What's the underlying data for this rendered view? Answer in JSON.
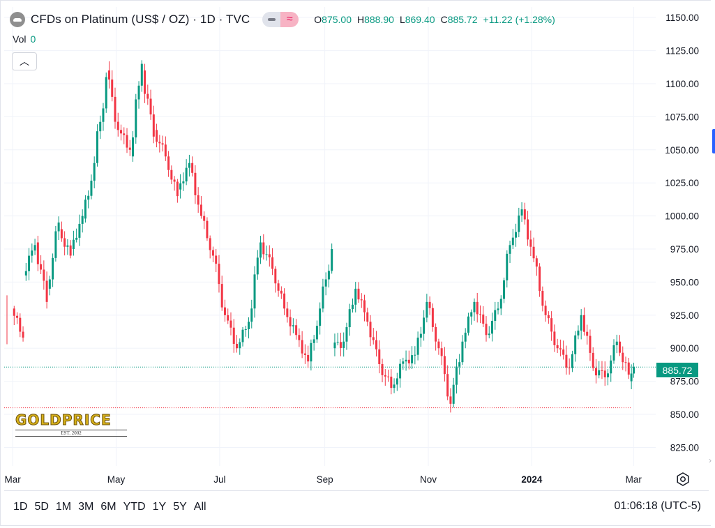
{
  "header": {
    "title": "CFDs on Platinum (US$ / OZ) · 1D · TVC",
    "ohlc": {
      "o_label": "O",
      "o": "875.00",
      "h_label": "H",
      "h": "888.90",
      "l_label": "L",
      "l": "869.40",
      "c_label": "C",
      "c": "885.72",
      "change": "+11.22 (+1.28%)"
    }
  },
  "volume": {
    "label": "Vol",
    "value": "0"
  },
  "last_price_label": "885.72",
  "watermark": {
    "brand": "GOLDPRICE",
    "est": "EST. 2002"
  },
  "range_buttons": [
    "1D",
    "5D",
    "1M",
    "3M",
    "6M",
    "YTD",
    "1Y",
    "5Y",
    "All"
  ],
  "clock": "01:06:18 (UTC-5)",
  "colors": {
    "up": "#089981",
    "down": "#f23645",
    "grid": "#f0f3fa"
  },
  "chart_data": {
    "type": "candlestick",
    "x_tick_labels": [
      "Mar",
      "May",
      "Jul",
      "Sep",
      "Nov",
      "2024",
      "Mar"
    ],
    "y_ticks": [
      825,
      850,
      875,
      900,
      925,
      950,
      975,
      1000,
      1025,
      1050,
      1075,
      1100,
      1125,
      1150
    ],
    "ylim": [
      811,
      1158
    ],
    "last_price": 885.72,
    "low_line": 855,
    "grid": true,
    "series": [
      {
        "date": "2023-03-01",
        "o": 930,
        "h": 940,
        "l": 905,
        "c": 908
      },
      {
        "date": "2023-03-08",
        "o": 955,
        "h": 985,
        "l": 950,
        "c": 978
      },
      {
        "date": "2023-03-15",
        "o": 980,
        "h": 985,
        "l": 930,
        "c": 935
      },
      {
        "date": "2023-03-22",
        "o": 945,
        "h": 1003,
        "l": 940,
        "c": 995
      },
      {
        "date": "2023-03-29",
        "o": 990,
        "h": 998,
        "l": 965,
        "c": 970
      },
      {
        "date": "2023-04-05",
        "o": 975,
        "h": 1005,
        "l": 970,
        "c": 1000
      },
      {
        "date": "2023-04-12",
        "o": 998,
        "h": 1045,
        "l": 995,
        "c": 1040
      },
      {
        "date": "2023-04-19",
        "o": 1040,
        "h": 1130,
        "l": 1035,
        "c": 1105
      },
      {
        "date": "2023-04-26",
        "o": 1110,
        "h": 1125,
        "l": 1060,
        "c": 1065
      },
      {
        "date": "2023-05-03",
        "o": 1065,
        "h": 1080,
        "l": 1045,
        "c": 1050
      },
      {
        "date": "2023-05-10",
        "o": 1045,
        "h": 1125,
        "l": 1040,
        "c": 1115
      },
      {
        "date": "2023-05-17",
        "o": 1110,
        "h": 1115,
        "l": 1055,
        "c": 1060
      },
      {
        "date": "2023-05-24",
        "o": 1065,
        "h": 1075,
        "l": 1040,
        "c": 1045
      },
      {
        "date": "2023-05-31",
        "o": 1045,
        "h": 1050,
        "l": 1010,
        "c": 1015
      },
      {
        "date": "2023-06-07",
        "o": 1020,
        "h": 1048,
        "l": 1005,
        "c": 1040
      },
      {
        "date": "2023-06-14",
        "o": 1040,
        "h": 1045,
        "l": 995,
        "c": 1000
      },
      {
        "date": "2023-06-21",
        "o": 1000,
        "h": 1005,
        "l": 965,
        "c": 970
      },
      {
        "date": "2023-06-28",
        "o": 970,
        "h": 975,
        "l": 920,
        "c": 925
      },
      {
        "date": "2023-07-05",
        "o": 925,
        "h": 930,
        "l": 895,
        "c": 900
      },
      {
        "date": "2023-07-12",
        "o": 900,
        "h": 925,
        "l": 895,
        "c": 920
      },
      {
        "date": "2023-07-19",
        "o": 920,
        "h": 985,
        "l": 915,
        "c": 980
      },
      {
        "date": "2023-07-26",
        "o": 980,
        "h": 990,
        "l": 955,
        "c": 960
      },
      {
        "date": "2023-08-02",
        "o": 960,
        "h": 965,
        "l": 925,
        "c": 930
      },
      {
        "date": "2023-08-09",
        "o": 930,
        "h": 935,
        "l": 905,
        "c": 910
      },
      {
        "date": "2023-08-16",
        "o": 910,
        "h": 915,
        "l": 885,
        "c": 890
      },
      {
        "date": "2023-08-23",
        "o": 890,
        "h": 935,
        "l": 882,
        "c": 930
      },
      {
        "date": "2023-08-30",
        "o": 930,
        "h": 985,
        "l": 925,
        "c": 975
      },
      {
        "date": "2023-09-06",
        "o": 900,
        "h": 915,
        "l": 890,
        "c": 905
      },
      {
        "date": "2023-09-13",
        "o": 905,
        "h": 952,
        "l": 895,
        "c": 945
      },
      {
        "date": "2023-09-20",
        "o": 945,
        "h": 950,
        "l": 915,
        "c": 920
      },
      {
        "date": "2023-09-27",
        "o": 920,
        "h": 925,
        "l": 880,
        "c": 888
      },
      {
        "date": "2023-10-04",
        "o": 888,
        "h": 892,
        "l": 855,
        "c": 870
      },
      {
        "date": "2023-10-11",
        "o": 870,
        "h": 895,
        "l": 865,
        "c": 890
      },
      {
        "date": "2023-10-18",
        "o": 890,
        "h": 905,
        "l": 880,
        "c": 895
      },
      {
        "date": "2023-10-25",
        "o": 895,
        "h": 945,
        "l": 890,
        "c": 935
      },
      {
        "date": "2023-11-01",
        "o": 935,
        "h": 940,
        "l": 895,
        "c": 900
      },
      {
        "date": "2023-11-08",
        "o": 900,
        "h": 905,
        "l": 840,
        "c": 858
      },
      {
        "date": "2023-11-15",
        "o": 858,
        "h": 910,
        "l": 855,
        "c": 905
      },
      {
        "date": "2023-11-22",
        "o": 905,
        "h": 945,
        "l": 900,
        "c": 935
      },
      {
        "date": "2023-11-29",
        "o": 935,
        "h": 945,
        "l": 905,
        "c": 910
      },
      {
        "date": "2023-12-06",
        "o": 910,
        "h": 935,
        "l": 890,
        "c": 930
      },
      {
        "date": "2023-12-13",
        "o": 930,
        "h": 985,
        "l": 925,
        "c": 978
      },
      {
        "date": "2023-12-20",
        "o": 978,
        "h": 1013,
        "l": 975,
        "c": 1005
      },
      {
        "date": "2023-12-27",
        "o": 1005,
        "h": 1010,
        "l": 965,
        "c": 968
      },
      {
        "date": "2024-01-03",
        "o": 968,
        "h": 970,
        "l": 920,
        "c": 925
      },
      {
        "date": "2024-01-10",
        "o": 925,
        "h": 928,
        "l": 895,
        "c": 900
      },
      {
        "date": "2024-01-17",
        "o": 900,
        "h": 915,
        "l": 880,
        "c": 885
      },
      {
        "date": "2024-01-24",
        "o": 885,
        "h": 935,
        "l": 882,
        "c": 925
      },
      {
        "date": "2024-01-31",
        "o": 925,
        "h": 938,
        "l": 880,
        "c": 885
      },
      {
        "date": "2024-02-07",
        "o": 885,
        "h": 895,
        "l": 870,
        "c": 878
      },
      {
        "date": "2024-02-14",
        "o": 878,
        "h": 912,
        "l": 872,
        "c": 905
      },
      {
        "date": "2024-02-21",
        "o": 905,
        "h": 910,
        "l": 875,
        "c": 880
      },
      {
        "date": "2024-02-28",
        "o": 875,
        "h": 889,
        "l": 869,
        "c": 886
      }
    ]
  }
}
